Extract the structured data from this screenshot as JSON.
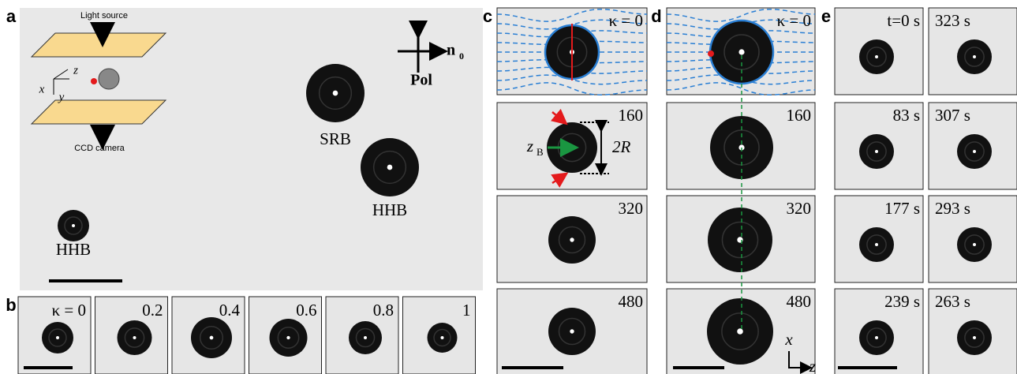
{
  "panels": {
    "a": {
      "label": "a",
      "light_source": "Light source",
      "ccd": "CCD camera",
      "axis_x": "x",
      "axis_y": "y",
      "axis_z": "z",
      "director": "n",
      "director_sub": "0",
      "polarizer": "Pol",
      "droplets": [
        "SRB",
        "HHB",
        "HHB"
      ]
    },
    "b": {
      "label": "b",
      "frames": [
        "κ = 0",
        "0.2",
        "0.4",
        "0.6",
        "0.8",
        "1"
      ]
    },
    "c": {
      "label": "c",
      "frames": [
        "κ = 0",
        "160",
        "320",
        "480"
      ],
      "zb": "z",
      "zb_sub": "B",
      "two_r": "2R"
    },
    "d": {
      "label": "d",
      "frames": [
        "κ = 0",
        "160",
        "320",
        "480"
      ],
      "axis_x": "x",
      "axis_z": "z"
    },
    "e": {
      "label": "e",
      "frames": [
        "t=0 s",
        "323 s",
        "83 s",
        "307 s",
        "177 s",
        "293 s",
        "239 s",
        "263 s"
      ]
    }
  }
}
